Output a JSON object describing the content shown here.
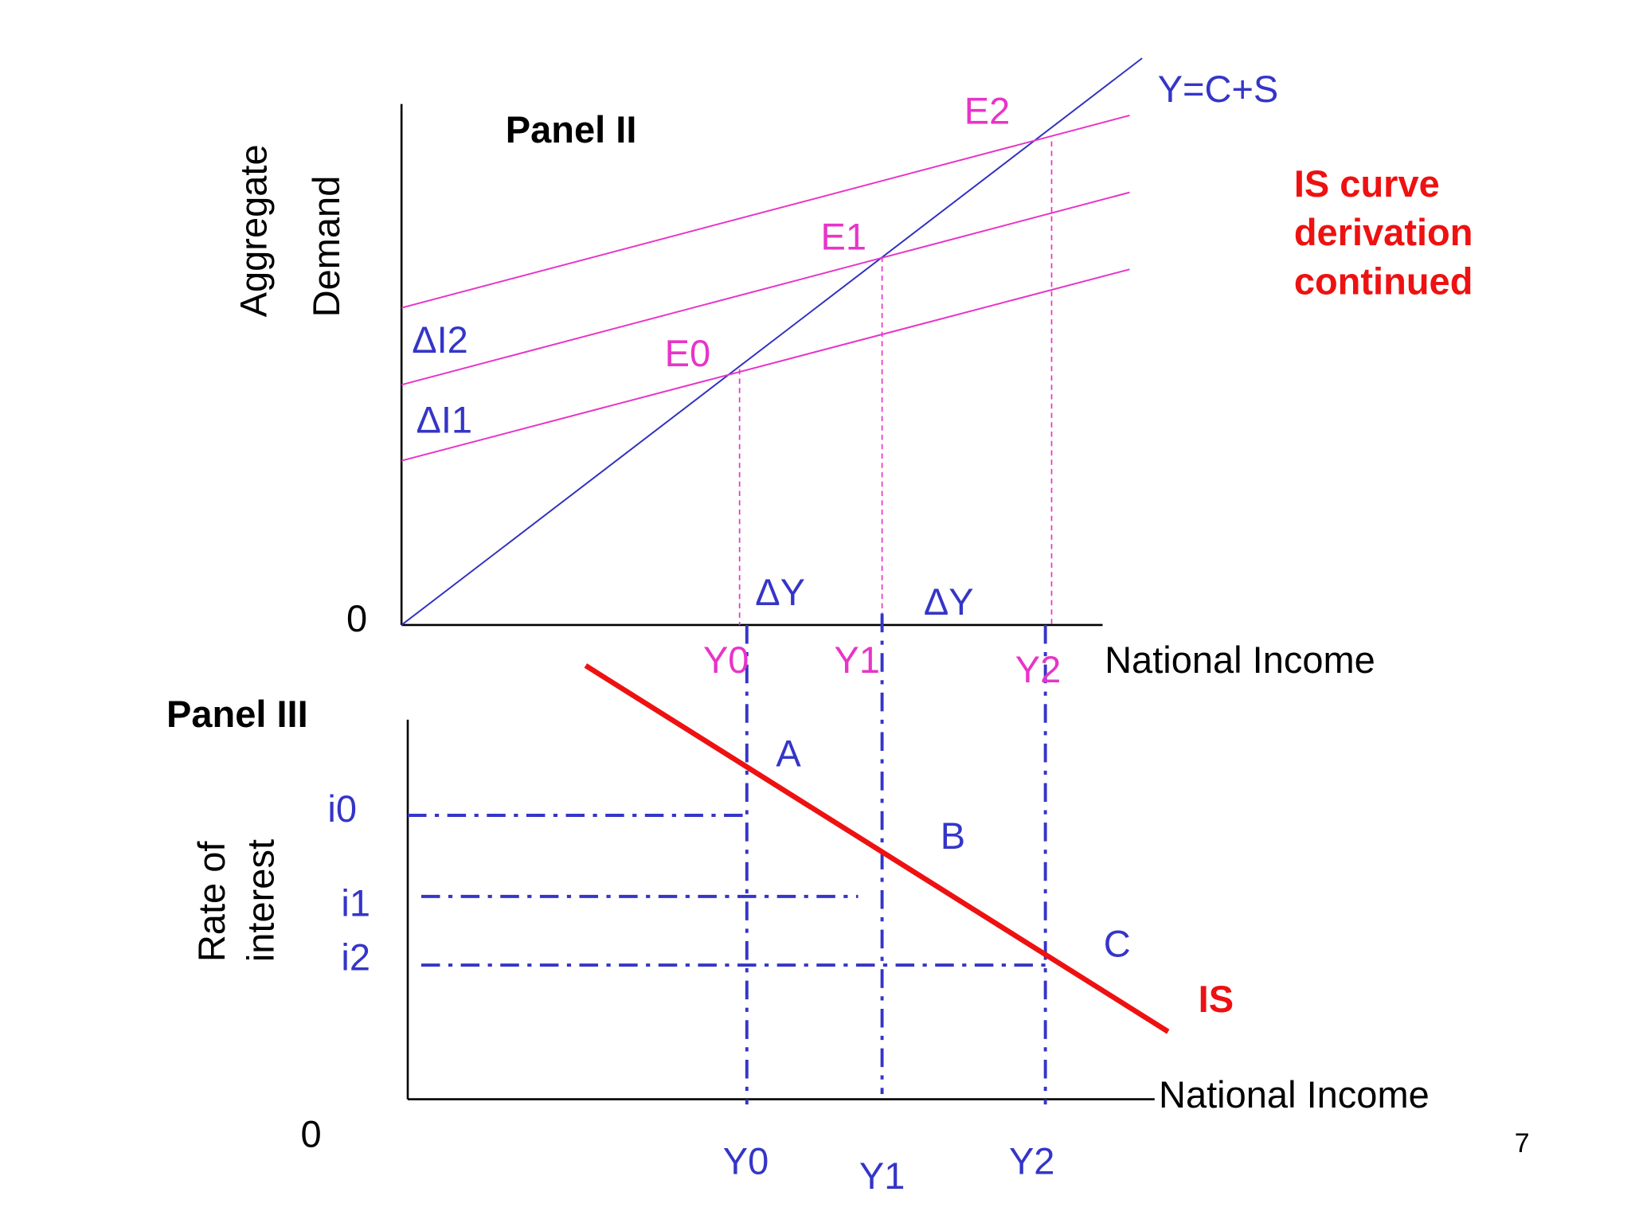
{
  "panel2": {
    "title": "Panel II",
    "y_label": [
      "Aggregate",
      "Demand"
    ],
    "origin": "0",
    "x_label": "National Income",
    "line_label": "Y=C+S",
    "equilibria": [
      "E0",
      "E1",
      "E2"
    ],
    "shifts": [
      "ΔI2",
      "ΔI1"
    ],
    "delta_y": [
      "ΔY",
      "ΔY"
    ],
    "incomes": [
      "Y0",
      "Y1",
      "Y2"
    ]
  },
  "side_note": [
    "IS curve",
    "derivation",
    "continued"
  ],
  "panel3": {
    "title": "Panel III",
    "y_label": [
      "Rate of",
      "interest"
    ],
    "origin": "0",
    "x_label": "National Income",
    "rates": [
      "i0",
      "i1",
      "i2"
    ],
    "points": [
      "A",
      "B",
      "C"
    ],
    "curve_label": "IS",
    "incomes": [
      "Y0",
      "Y1",
      "Y2"
    ]
  },
  "page_number": "7"
}
